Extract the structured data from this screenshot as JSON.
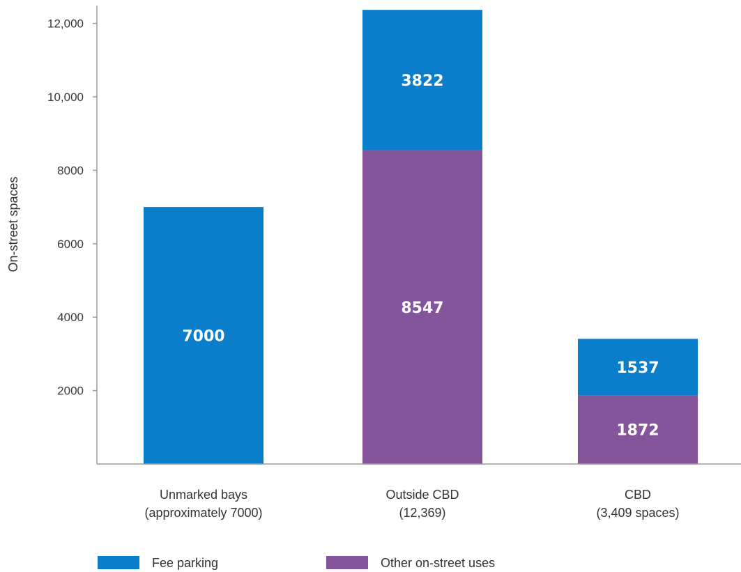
{
  "chart_data": {
    "type": "bar",
    "stacked": true,
    "ylabel": "On-street spaces",
    "ylim": [
      0,
      12400
    ],
    "yticks": [
      {
        "value": 2000,
        "label": "2000"
      },
      {
        "value": 4000,
        "label": "4000"
      },
      {
        "value": 6000,
        "label": "6000"
      },
      {
        "value": 8000,
        "label": "8000"
      },
      {
        "value": 10000,
        "label": "10,000"
      },
      {
        "value": 12000,
        "label": "12,000"
      }
    ],
    "grid": false,
    "legend_position": "bottom",
    "categories": [
      [
        "Unmarked bays",
        "(approximately 7000)"
      ],
      [
        "Outside CBD",
        "(12,369)"
      ],
      [
        "CBD",
        "(3,409 spaces)"
      ]
    ],
    "series": [
      {
        "name": "Other on-street uses",
        "color": "#84559a",
        "values": [
          0,
          8547,
          1872
        ],
        "labels": [
          "",
          "8547",
          "1872"
        ]
      },
      {
        "name": "Fee parking",
        "color": "#0a7ecb",
        "values": [
          7000,
          3822,
          1537
        ],
        "labels": [
          "7000",
          "3822",
          "1537"
        ]
      }
    ],
    "legend_order": [
      1,
      0
    ]
  }
}
